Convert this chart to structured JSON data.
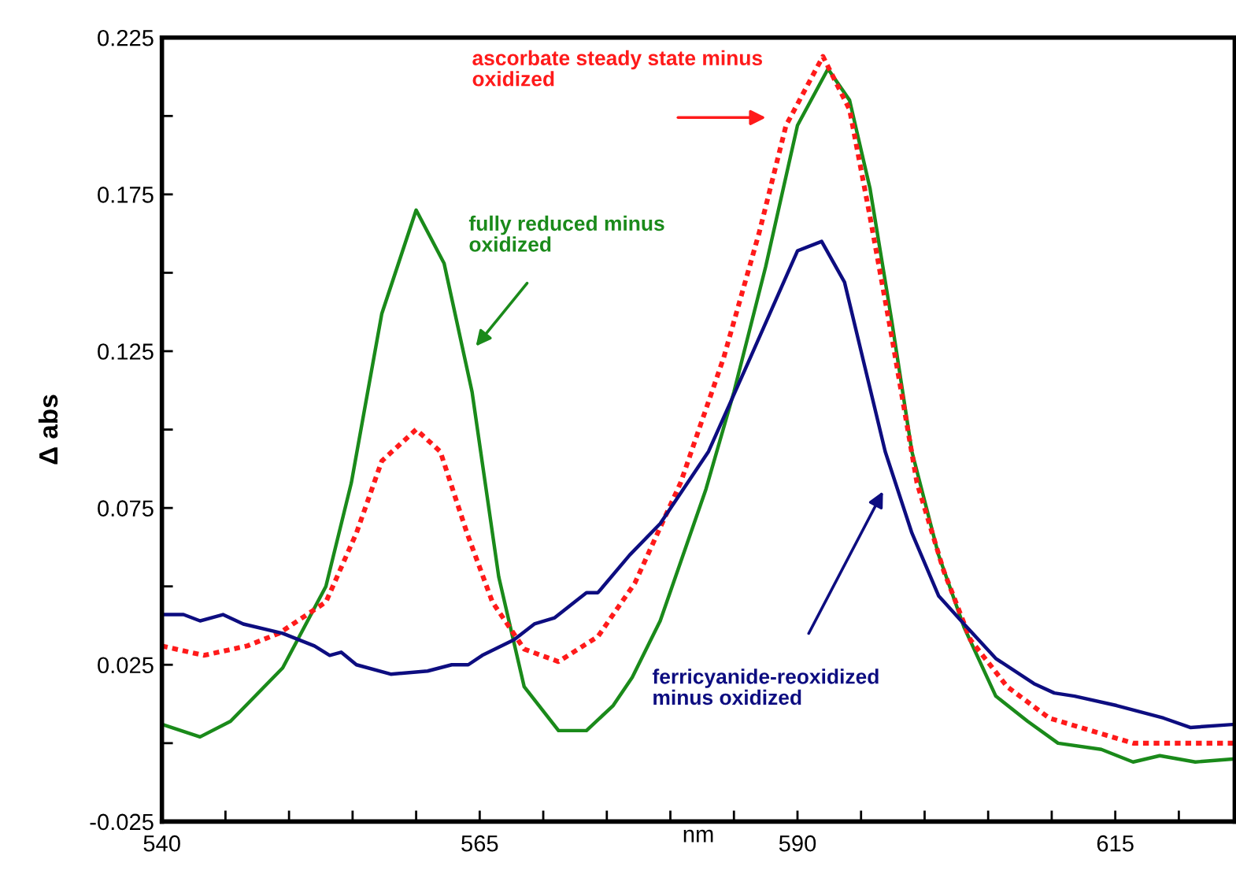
{
  "chart_data": {
    "type": "line",
    "xlabel": "nm",
    "ylabel": "Δ abs",
    "xlim": [
      540,
      624.4
    ],
    "ylim": [
      -0.025,
      0.225
    ],
    "xticks": [
      540,
      {
        "value": 545,
        "label": null
      },
      {
        "value": 550,
        "label": null
      },
      {
        "value": 555,
        "label": null
      },
      {
        "value": 560,
        "label": null
      },
      565,
      {
        "value": 570,
        "label": null
      },
      {
        "value": 575,
        "label": null
      },
      {
        "value": 580,
        "label": null
      },
      {
        "value": 585,
        "label": null
      },
      590,
      {
        "value": 595,
        "label": null
      },
      {
        "value": 600,
        "label": null
      },
      {
        "value": 605,
        "label": null
      },
      {
        "value": 610,
        "label": null
      },
      615,
      {
        "value": 620,
        "label": null
      }
    ],
    "yticks": [
      -0.025,
      {
        "value": 0.0,
        "label": null
      },
      0.025,
      {
        "value": 0.05,
        "label": null
      },
      0.075,
      {
        "value": 0.1,
        "label": null
      },
      0.125,
      {
        "value": 0.15,
        "label": null
      },
      0.175,
      {
        "value": 0.2,
        "label": null
      },
      0.225
    ],
    "grid": false,
    "marker": "none",
    "series": [
      {
        "color": "#1a8a1a",
        "line_style": "solid",
        "x": [
          540,
          543,
          545.4,
          549.5,
          552.9,
          554.9,
          557.3,
          560,
          562.2,
          564.4,
          566.5,
          568.5,
          571.2,
          573.4,
          575.5,
          577,
          579.2,
          582.8,
          585,
          587.5,
          590,
          592.4,
          594.1,
          595.7,
          597.4,
          599,
          601.1,
          603.1,
          605.6,
          608.1,
          610.5,
          613.9,
          616.4,
          618.5,
          621.3,
          624.4
        ],
        "values": [
          0.006,
          0.002,
          0.007,
          0.024,
          0.05,
          0.083,
          0.137,
          0.17,
          0.153,
          0.112,
          0.053,
          0.018,
          0.004,
          0.004,
          0.012,
          0.021,
          0.039,
          0.081,
          0.112,
          0.152,
          0.197,
          0.215,
          0.205,
          0.177,
          0.135,
          0.093,
          0.06,
          0.037,
          0.015,
          0.007,
          0.0,
          -0.002,
          -0.006,
          -0.004,
          -0.006,
          -0.005
        ]
      },
      {
        "color": "#ff1a1a",
        "line_style": "dotted",
        "x": [
          540,
          543.3,
          546.7,
          549.2,
          552.9,
          555.3,
          557.3,
          560,
          561.9,
          564,
          566,
          568.5,
          571.2,
          574.3,
          577.2,
          580.8,
          584.2,
          587,
          589.1,
          592,
          594.1,
          595.7,
          597.4,
          599.4,
          601.5,
          603.6,
          606.5,
          609.8,
          613.9,
          616.4,
          621.3,
          624.4
        ],
        "values": [
          0.031,
          0.028,
          0.031,
          0.035,
          0.045,
          0.067,
          0.09,
          0.1,
          0.093,
          0.067,
          0.045,
          0.03,
          0.026,
          0.034,
          0.051,
          0.083,
          0.123,
          0.163,
          0.197,
          0.219,
          0.202,
          0.168,
          0.13,
          0.083,
          0.055,
          0.033,
          0.018,
          0.008,
          0.003,
          0.0,
          0.0,
          0.0
        ]
      },
      {
        "color": "#0d0d80",
        "line_style": "solid",
        "x": [
          540,
          541.7,
          543,
          544.8,
          546.4,
          549.5,
          552,
          553.2,
          554.1,
          555.3,
          558,
          560.9,
          562.8,
          564.1,
          565.2,
          567.7,
          569.3,
          570.9,
          573.4,
          574.3,
          576.8,
          579.2,
          583,
          586.3,
          590,
          591.9,
          593.7,
          595.3,
          596.9,
          599,
          601.1,
          603.1,
          605.6,
          608.6,
          610.2,
          611.8,
          615.1,
          618.8,
          620.9,
          624.4
        ],
        "values": [
          0.041,
          0.041,
          0.039,
          0.041,
          0.038,
          0.035,
          0.031,
          0.028,
          0.029,
          0.025,
          0.022,
          0.023,
          0.025,
          0.025,
          0.028,
          0.033,
          0.038,
          0.04,
          0.048,
          0.048,
          0.06,
          0.07,
          0.093,
          0.123,
          0.157,
          0.16,
          0.147,
          0.12,
          0.093,
          0.067,
          0.047,
          0.038,
          0.027,
          0.019,
          0.016,
          0.015,
          0.012,
          0.008,
          0.005,
          0.006
        ]
      }
    ],
    "annotations": [
      "ascorbate steady state minus\noxidized",
      "fully reduced minus\noxidized",
      "ferricyanide-reoxidized\nminus oxidized"
    ]
  }
}
